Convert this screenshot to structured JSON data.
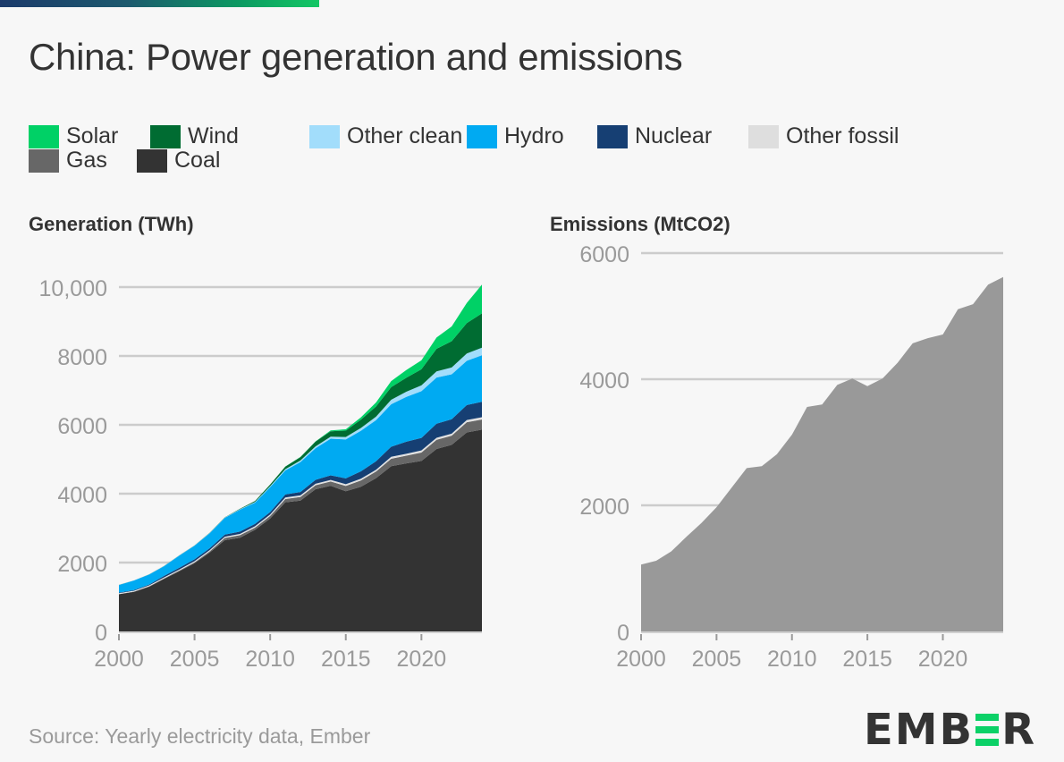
{
  "title": "China: Power generation and emissions",
  "legend": [
    {
      "label": "Solar",
      "color": "#00d166"
    },
    {
      "label": "Wind",
      "color": "#006c32"
    },
    {
      "label": "Other clean",
      "color": "#a2ddfb"
    },
    {
      "label": "Hydro",
      "color": "#00aaf2"
    },
    {
      "label": "Nuclear",
      "color": "#163f73"
    },
    {
      "label": "Other fossil",
      "color": "#dedede"
    },
    {
      "label": "Gas",
      "color": "#676767"
    },
    {
      "label": "Coal",
      "color": "#333333"
    }
  ],
  "source": "Source: Yearly electricity data, Ember",
  "logo": {
    "part1": "EMB",
    "part2": "R"
  },
  "chart_data": [
    {
      "type": "area",
      "stacked": true,
      "title": "Generation (TWh)",
      "xlabel": "",
      "ylabel": "Generation (TWh)",
      "x": [
        2000,
        2001,
        2002,
        2003,
        2004,
        2005,
        2006,
        2007,
        2008,
        2009,
        2010,
        2011,
        2012,
        2013,
        2014,
        2015,
        2016,
        2017,
        2018,
        2019,
        2020,
        2021,
        2022,
        2023,
        2024
      ],
      "xticks": [
        "2000",
        "2005",
        "2010",
        "2015",
        "2020"
      ],
      "yticks": [
        "0",
        "2000",
        "4000",
        "6000",
        "8000",
        "10,000"
      ],
      "ylim": [
        0,
        10000
      ],
      "grid": true,
      "legend_position": "top",
      "series": [
        {
          "name": "Coal",
          "color": "#333333",
          "values": [
            1080,
            1150,
            1300,
            1530,
            1750,
            1980,
            2290,
            2650,
            2720,
            2950,
            3280,
            3750,
            3800,
            4130,
            4230,
            4070,
            4200,
            4450,
            4800,
            4880,
            4950,
            5300,
            5420,
            5780,
            5860
          ]
        },
        {
          "name": "Gas",
          "color": "#676767",
          "values": [
            10,
            12,
            15,
            18,
            25,
            30,
            40,
            70,
            80,
            70,
            80,
            100,
            110,
            120,
            130,
            160,
            190,
            200,
            220,
            230,
            250,
            270,
            270,
            300,
            300
          ]
        },
        {
          "name": "Other fossil",
          "color": "#dedede",
          "values": [
            20,
            20,
            22,
            25,
            25,
            30,
            30,
            30,
            30,
            35,
            35,
            40,
            40,
            40,
            40,
            45,
            45,
            45,
            50,
            50,
            55,
            55,
            55,
            60,
            60
          ]
        },
        {
          "name": "Nuclear",
          "color": "#163f73",
          "values": [
            17,
            18,
            25,
            43,
            50,
            53,
            55,
            62,
            68,
            70,
            74,
            87,
            98,
            112,
            133,
            171,
            213,
            248,
            295,
            349,
            366,
            408,
            418,
            435,
            450
          ]
        },
        {
          "name": "Hydro",
          "color": "#00aaf2",
          "values": [
            222,
            280,
            290,
            284,
            354,
            397,
            436,
            486,
            637,
            616,
            722,
            699,
            872,
            920,
            1064,
            1130,
            1181,
            1194,
            1232,
            1302,
            1355,
            1340,
            1303,
            1285,
            1350
          ]
        },
        {
          "name": "Other clean",
          "color": "#a2ddfb",
          "values": [
            3,
            4,
            5,
            6,
            7,
            8,
            10,
            12,
            15,
            20,
            25,
            35,
            45,
            50,
            60,
            70,
            80,
            100,
            130,
            150,
            170,
            180,
            200,
            210,
            220
          ]
        },
        {
          "name": "Wind",
          "color": "#006c32",
          "values": [
            1,
            1,
            2,
            2,
            3,
            3,
            5,
            6,
            13,
            28,
            50,
            74,
            96,
            141,
            156,
            186,
            241,
            295,
            366,
            406,
            467,
            656,
            763,
            886,
            997
          ]
        },
        {
          "name": "Solar",
          "color": "#00d166",
          "values": [
            0,
            0,
            0,
            0,
            0,
            0,
            0,
            0,
            0,
            0,
            1,
            3,
            6,
            8,
            24,
            39,
            66,
            118,
            177,
            225,
            261,
            327,
            428,
            584,
            834
          ]
        }
      ]
    },
    {
      "type": "area",
      "title": "Emissions (MtCO2)",
      "xlabel": "",
      "ylabel": "Emissions (MtCO2)",
      "x": [
        2000,
        2001,
        2002,
        2003,
        2004,
        2005,
        2006,
        2007,
        2008,
        2009,
        2010,
        2011,
        2012,
        2013,
        2014,
        2015,
        2016,
        2017,
        2018,
        2019,
        2020,
        2021,
        2022,
        2023,
        2024
      ],
      "xticks": [
        "2000",
        "2005",
        "2010",
        "2015",
        "2020"
      ],
      "yticks": [
        "0",
        "2000",
        "4000",
        "6000"
      ],
      "ylim": [
        0,
        6000
      ],
      "grid": true,
      "series": [
        {
          "name": "Emissions",
          "color": "#999999",
          "values": [
            1060,
            1120,
            1270,
            1500,
            1720,
            1970,
            2280,
            2590,
            2620,
            2810,
            3120,
            3560,
            3600,
            3910,
            4010,
            3890,
            4010,
            4260,
            4570,
            4650,
            4710,
            5110,
            5190,
            5500,
            5620
          ]
        }
      ]
    }
  ]
}
